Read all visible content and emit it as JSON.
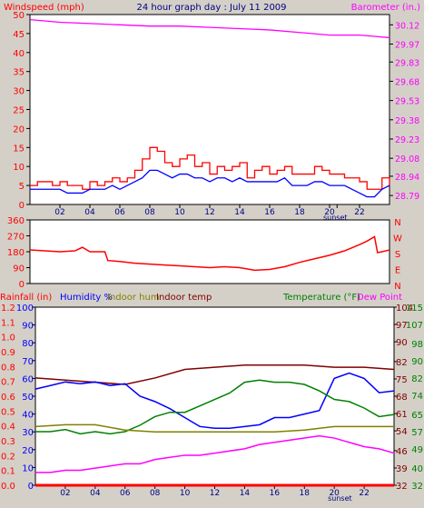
{
  "header": {
    "windspeed_label": "Windspeed (mph)",
    "title": "24 hour graph day : July 11 2009",
    "barometer_label": "Barometer (in.)"
  },
  "colors": {
    "background": "#d4d0c8",
    "plot_bg": "#ffffff",
    "windspeed": "#ff0000",
    "wind_avg": "#0000ff",
    "barometer": "#ff00ff",
    "wind_dir": "#ff0000",
    "rain": "#ff0000",
    "humidity": "#0000ff",
    "indoor_hum": "#808000",
    "indoor_temp": "#800000",
    "temperature": "#008000",
    "dew_point": "#ff00ff",
    "title": "#000080"
  },
  "chart_data": [
    {
      "id": "wind_baro",
      "type": "line",
      "x_ticks": [
        "02",
        "04",
        "06",
        "08",
        "10",
        "12",
        "14",
        "16",
        "18",
        "20",
        "22"
      ],
      "x_extra_labels": [
        "sunset"
      ],
      "x_range_hours": [
        0,
        24
      ],
      "sunset_hour": 20.5,
      "left_axis": {
        "label": "Windspeed (mph)",
        "ticks": [
          "50",
          "45",
          "40",
          "35",
          "30",
          "25",
          "20",
          "15",
          "10",
          "5",
          "0"
        ],
        "range": [
          0,
          50
        ]
      },
      "right_axis": {
        "label": "Barometer (in.)",
        "ticks": [
          "30.12",
          "29.97",
          "29.83",
          "29.68",
          "29.53",
          "29.38",
          "29.23",
          "29.08",
          "28.94",
          "28.79"
        ],
        "range": [
          28.72,
          30.2
        ]
      },
      "series": [
        {
          "name": "Windspeed (mph)",
          "axis": "left",
          "color": "#ff0000",
          "x": [
            0,
            0.5,
            1,
            1.5,
            2,
            2.5,
            3,
            3.5,
            4,
            4.5,
            5,
            5.5,
            6,
            6.5,
            7,
            7.5,
            8,
            8.5,
            9,
            9.5,
            10,
            10.5,
            11,
            11.5,
            12,
            12.5,
            13,
            13.5,
            14,
            14.5,
            15,
            15.5,
            16,
            16.5,
            17,
            17.5,
            18,
            18.5,
            19,
            19.5,
            20,
            20.5,
            21,
            21.5,
            22,
            22.5,
            23,
            23.5,
            24
          ],
          "values": [
            5,
            6,
            6,
            5,
            6,
            5,
            5,
            4,
            6,
            5,
            6,
            7,
            6,
            7,
            9,
            12,
            15,
            14,
            11,
            10,
            12,
            13,
            10,
            11,
            8,
            10,
            9,
            10,
            11,
            7,
            9,
            10,
            8,
            9,
            10,
            8,
            8,
            8,
            10,
            9,
            8,
            8,
            7,
            7,
            6,
            4,
            4,
            7,
            5
          ]
        },
        {
          "name": "Wind average",
          "axis": "left",
          "color": "#0000ff",
          "x": [
            0,
            0.5,
            1,
            1.5,
            2,
            2.5,
            3,
            3.5,
            4,
            4.5,
            5,
            5.5,
            6,
            6.5,
            7,
            7.5,
            8,
            8.5,
            9,
            9.5,
            10,
            10.5,
            11,
            11.5,
            12,
            12.5,
            13,
            13.5,
            14,
            14.5,
            15,
            15.5,
            16,
            16.5,
            17,
            17.5,
            18,
            18.5,
            19,
            19.5,
            20,
            20.5,
            21,
            21.5,
            22,
            22.5,
            23,
            23.5,
            24
          ],
          "values": [
            4,
            4,
            4,
            4,
            4,
            3,
            3,
            3,
            4,
            4,
            4,
            5,
            4,
            5,
            6,
            7,
            9,
            9,
            8,
            7,
            8,
            8,
            7,
            7,
            6,
            7,
            7,
            6,
            7,
            6,
            6,
            6,
            6,
            6,
            7,
            5,
            5,
            5,
            6,
            6,
            5,
            5,
            5,
            4,
            3,
            2,
            2,
            4,
            5
          ]
        },
        {
          "name": "Barometer (in.)",
          "axis": "right",
          "color": "#ff00ff",
          "x": [
            0,
            2,
            4,
            6,
            8,
            10,
            12,
            14,
            16,
            18,
            20,
            22,
            23,
            24
          ],
          "values": [
            30.16,
            30.14,
            30.13,
            30.12,
            30.11,
            30.11,
            30.1,
            30.09,
            30.08,
            30.06,
            30.04,
            30.04,
            30.03,
            30.02
          ]
        }
      ]
    },
    {
      "id": "wind_direction",
      "type": "line",
      "left_axis": {
        "ticks": [
          "360",
          "270",
          "180",
          "90",
          "0"
        ],
        "range": [
          0,
          360
        ]
      },
      "right_axis": {
        "ticks": [
          "N",
          "W",
          "S",
          "E",
          "N"
        ]
      },
      "series": [
        {
          "name": "Wind direction",
          "color": "#ff0000",
          "x": [
            0,
            1,
            2,
            3,
            3.5,
            4,
            5,
            5.2,
            6,
            7,
            8,
            9,
            10,
            11,
            12,
            13,
            14,
            15,
            16,
            17,
            18,
            19,
            20,
            21,
            22,
            22.5,
            23,
            23.2,
            23.5,
            24
          ],
          "values": [
            190,
            185,
            180,
            185,
            205,
            180,
            180,
            130,
            125,
            115,
            110,
            105,
            100,
            95,
            90,
            95,
            90,
            75,
            80,
            95,
            120,
            140,
            160,
            185,
            220,
            240,
            265,
            175,
            180,
            190
          ]
        }
      ]
    },
    {
      "id": "rain_hum_temp",
      "type": "line",
      "header_labels": {
        "rainfall": "Rainfall (in)",
        "humidity": "Humidity %",
        "indoor_hum": "Indoor hum",
        "indoor_temp": "Indoor temp",
        "temperature": "Temperature (°F)",
        "dew_point": "Dew Point"
      },
      "rain_axis": {
        "ticks": [
          "1.2",
          "1.1",
          "1.0",
          "0.9",
          "0.8",
          "0.7",
          "0.6",
          "0.5",
          "0.4",
          "0.3",
          "0.2",
          "0.1",
          "0.0"
        ],
        "range": [
          0,
          1.2
        ]
      },
      "humidity_axis": {
        "ticks": [
          "100",
          "90",
          "80",
          "70",
          "60",
          "50",
          "40",
          "30",
          "20",
          "10",
          "0"
        ],
        "range": [
          0,
          100
        ]
      },
      "temp_axis_left": {
        "ticks": [
          "104",
          "97",
          "90",
          "82",
          "75",
          "68",
          "61",
          "54",
          "46",
          "39",
          "32"
        ],
        "range": [
          32,
          104
        ]
      },
      "temp_axis_right": {
        "ticks": [
          "115",
          "107",
          "98",
          "90",
          "82",
          "74",
          "65",
          "57",
          "49",
          "40",
          "32"
        ],
        "range": [
          32,
          115
        ]
      },
      "series": [
        {
          "name": "Indoor temp",
          "color": "#800000",
          "unit_axis": "temp_right",
          "x": [
            0,
            2,
            4,
            6,
            8,
            10,
            12,
            14,
            16,
            18,
            20,
            22,
            24
          ],
          "values": [
            82,
            81,
            80,
            79,
            82,
            86,
            87,
            88,
            88,
            88,
            87,
            87,
            86
          ]
        },
        {
          "name": "Humidity %",
          "color": "#0000ff",
          "unit_axis": "humidity",
          "x": [
            0,
            1,
            2,
            3,
            4,
            5,
            6,
            7,
            8,
            9,
            10,
            11,
            12,
            13,
            14,
            15,
            16,
            17,
            18,
            19,
            20,
            21,
            22,
            23,
            24
          ],
          "values": [
            54,
            56,
            58,
            57,
            58,
            56,
            57,
            50,
            47,
            43,
            38,
            33,
            32,
            32,
            33,
            34,
            38,
            38,
            40,
            42,
            60,
            63,
            60,
            52,
            53
          ]
        },
        {
          "name": "Temperature (°F)",
          "color": "#008000",
          "unit_axis": "temp_right",
          "x": [
            0,
            1,
            2,
            3,
            4,
            5,
            6,
            7,
            8,
            9,
            10,
            11,
            12,
            13,
            14,
            15,
            16,
            17,
            18,
            19,
            20,
            21,
            22,
            23,
            24
          ],
          "values": [
            57,
            57,
            58,
            56,
            57,
            56,
            57,
            60,
            64,
            66,
            66,
            69,
            72,
            75,
            80,
            81,
            80,
            80,
            79,
            76,
            72,
            71,
            68,
            64,
            65
          ]
        },
        {
          "name": "Indoor hum",
          "color": "#808000",
          "unit_axis": "humidity",
          "x": [
            0,
            2,
            4,
            6,
            8,
            10,
            12,
            14,
            16,
            18,
            20,
            22,
            24
          ],
          "values": [
            33,
            34,
            34,
            31,
            30,
            30,
            30,
            30,
            30,
            31,
            33,
            33,
            33
          ]
        },
        {
          "name": "Dew Point",
          "color": "#ff00ff",
          "unit_axis": "temp_right",
          "x": [
            0,
            1,
            2,
            3,
            4,
            5,
            6,
            7,
            8,
            9,
            10,
            11,
            12,
            13,
            14,
            15,
            16,
            17,
            18,
            19,
            20,
            21,
            22,
            23,
            24
          ],
          "values": [
            38,
            38,
            39,
            39,
            40,
            41,
            42,
            42,
            44,
            45,
            46,
            46,
            47,
            48,
            49,
            51,
            52,
            53,
            54,
            55,
            54,
            52,
            50,
            49,
            47
          ]
        },
        {
          "name": "Rainfall (in)",
          "color": "#ff0000",
          "unit_axis": "rain",
          "x": [
            0,
            24
          ],
          "values": [
            0,
            0
          ]
        }
      ]
    }
  ]
}
